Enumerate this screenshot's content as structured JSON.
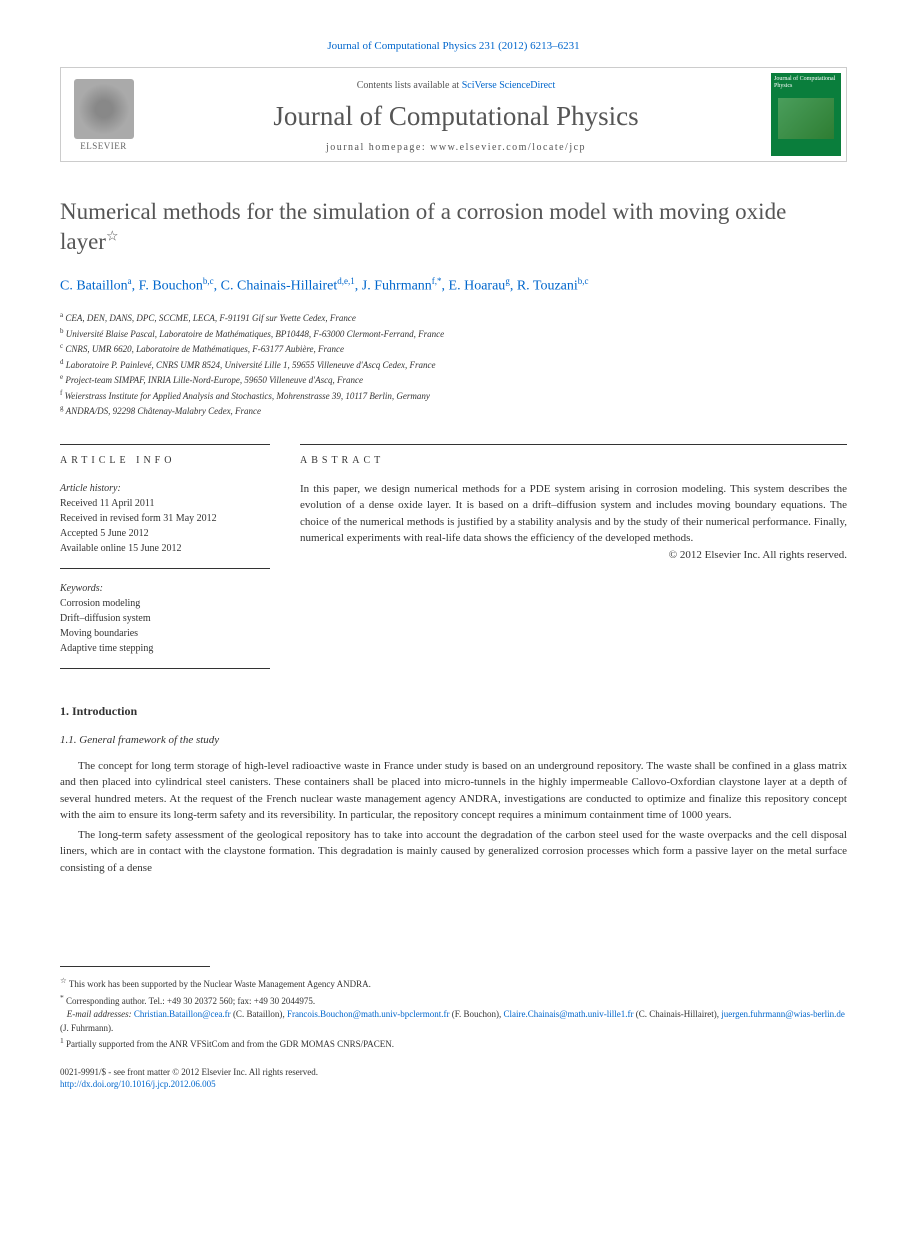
{
  "citation": "Journal of Computational Physics 231 (2012) 6213–6231",
  "header": {
    "contents_prefix": "Contents lists available at ",
    "contents_link": "SciVerse ScienceDirect",
    "journal_title": "Journal of Computational Physics",
    "homepage_label": "journal homepage: www.elsevier.com/locate/jcp",
    "publisher": "ELSEVIER",
    "cover_title": "Journal of Computational Physics"
  },
  "article": {
    "title": "Numerical methods for the simulation of a corrosion model with moving oxide layer",
    "star": "☆"
  },
  "authors": [
    {
      "name": "C. Bataillon",
      "sup": "a"
    },
    {
      "name": "F. Bouchon",
      "sup": "b,c"
    },
    {
      "name": "C. Chainais-Hillairet",
      "sup": "d,e,1"
    },
    {
      "name": "J. Fuhrmann",
      "sup": "f,*"
    },
    {
      "name": "E. Hoarau",
      "sup": "g"
    },
    {
      "name": "R. Touzani",
      "sup": "b,c"
    }
  ],
  "affiliations": [
    {
      "sup": "a",
      "text": "CEA, DEN, DANS, DPC, SCCME, LECA, F-91191 Gif sur Yvette Cedex, France"
    },
    {
      "sup": "b",
      "text": "Université Blaise Pascal, Laboratoire de Mathématiques, BP10448, F-63000 Clermont-Ferrand, France"
    },
    {
      "sup": "c",
      "text": "CNRS, UMR 6620, Laboratoire de Mathématiques, F-63177 Aubière, France"
    },
    {
      "sup": "d",
      "text": "Laboratoire P. Painlevé, CNRS UMR 8524, Université Lille 1, 59655 Villeneuve d'Ascq Cedex, France"
    },
    {
      "sup": "e",
      "text": "Project-team SIMPAF, INRIA Lille-Nord-Europe, 59650 Villeneuve d'Ascq, France"
    },
    {
      "sup": "f",
      "text": "Weierstrass Institute for Applied Analysis and Stochastics, Mohrenstrasse 39, 10117 Berlin, Germany"
    },
    {
      "sup": "g",
      "text": "ANDRA/DS, 92298 Châtenay-Malabry Cedex, France"
    }
  ],
  "info": {
    "section_label": "ARTICLE INFO",
    "history_label": "Article history:",
    "received": "Received 11 April 2011",
    "revised": "Received in revised form 31 May 2012",
    "accepted": "Accepted 5 June 2012",
    "online": "Available online 15 June 2012",
    "keywords_label": "Keywords:",
    "keywords": [
      "Corrosion modeling",
      "Drift–diffusion system",
      "Moving boundaries",
      "Adaptive time stepping"
    ]
  },
  "abstract": {
    "section_label": "ABSTRACT",
    "text": "In this paper, we design numerical methods for a PDE system arising in corrosion modeling. This system describes the evolution of a dense oxide layer. It is based on a drift–diffusion system and includes moving boundary equations. The choice of the numerical methods is justified by a stability analysis and by the study of their numerical performance. Finally, numerical experiments with real-life data shows the efficiency of the developed methods.",
    "copyright": "© 2012 Elsevier Inc. All rights reserved."
  },
  "sections": {
    "s1": "1. Introduction",
    "s1_1": "1.1. General framework of the study",
    "para1": "The concept for long term storage of high-level radioactive waste in France under study is based on an underground repository. The waste shall be confined in a glass matrix and then placed into cylindrical steel canisters. These containers shall be placed into micro-tunnels in the highly impermeable Callovo-Oxfordian claystone layer at a depth of several hundred meters. At the request of the French nuclear waste management agency ANDRA, investigations are conducted to optimize and finalize this repository concept with the aim to ensure its long-term safety and its reversibility. In particular, the repository concept requires a minimum containment time of 1000 years.",
    "para2": "The long-term safety assessment of the geological repository has to take into account the degradation of the carbon steel used for the waste overpacks and the cell disposal liners, which are in contact with the claystone formation. This degradation is mainly caused by generalized corrosion processes which form a passive layer on the metal surface consisting of a dense"
  },
  "footnotes": {
    "star": "This work has been supported by the Nuclear Waste Management Agency ANDRA.",
    "corresponding": "Corresponding author. Tel.: +49 30 20372 560; fax: +49 30 2044975.",
    "emails_label": "E-mail addresses:",
    "emails": [
      {
        "addr": "Christian.Bataillon@cea.fr",
        "who": "(C. Bataillon)"
      },
      {
        "addr": "Francois.Bouchon@math.univ-bpclermont.fr",
        "who": "(F. Bouchon)"
      },
      {
        "addr": "Claire.Chainais@math.univ-lille1.fr",
        "who": "(C. Chainais-Hillairet)"
      },
      {
        "addr": "juergen.fuhrmann@wias-berlin.de",
        "who": "(J. Fuhrmann)"
      }
    ],
    "note1": "Partially supported from the ANR VFSitCom and from the GDR MOMAS CNRS/PACEN."
  },
  "bottom": {
    "issn": "0021-9991/$ - see front matter © 2012 Elsevier Inc. All rights reserved.",
    "doi": "http://dx.doi.org/10.1016/j.jcp.2012.06.005"
  },
  "colors": {
    "link": "#0066cc",
    "text": "#333333",
    "heading": "#555555",
    "cover": "#0a7e3c"
  }
}
